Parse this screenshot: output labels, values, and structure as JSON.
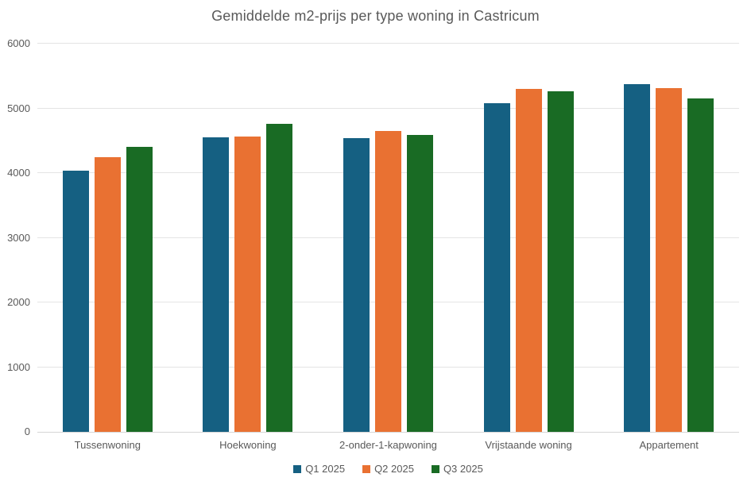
{
  "chart_data": {
    "type": "bar",
    "title": "Gemiddelde m2-prijs per type woning in Castricum",
    "categories": [
      "Tussenwoning",
      "Hoekwoning",
      "2-onder-1-kapwoning",
      "Vrijstaande woning",
      "Appartement"
    ],
    "series": [
      {
        "name": "Q1 2025",
        "color": "#156082",
        "values": [
          4035,
          4550,
          4535,
          5085,
          5380
        ]
      },
      {
        "name": "Q2 2025",
        "color": "#E97132",
        "values": [
          4240,
          4560,
          4650,
          5305,
          5310
        ]
      },
      {
        "name": "Q3 2025",
        "color": "#196B24",
        "values": [
          4410,
          4765,
          4590,
          5265,
          5150
        ]
      }
    ],
    "xlabel": "",
    "ylabel": "",
    "ylim": [
      0,
      6000
    ],
    "ytick_step": 1000,
    "ytick_labels": [
      "0",
      "1000",
      "2000",
      "3000",
      "4000",
      "5000",
      "6000"
    ],
    "grid": true,
    "legend_position": "bottom"
  },
  "colors": {
    "background": "#FFFFFF",
    "title_text": "#595959",
    "axis_text": "#595959",
    "gridline": "#E4E4E4",
    "axis_line": "#D6D6D6"
  }
}
